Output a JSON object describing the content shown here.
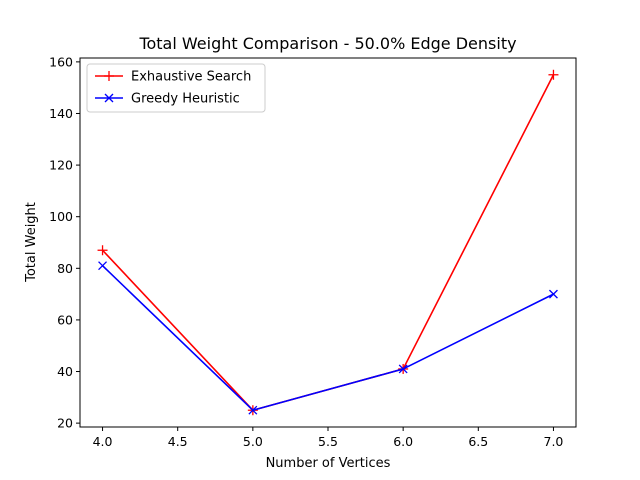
{
  "chart_data": {
    "type": "line",
    "title": "Total Weight Comparison - 50.0% Edge Density",
    "xlabel": "Number of Vertices",
    "ylabel": "Total Weight",
    "x": [
      4.0,
      5.0,
      6.0,
      7.0
    ],
    "xlim": [
      3.85,
      7.15
    ],
    "ylim": [
      18.5,
      161.5
    ],
    "xticks": [
      4.0,
      4.5,
      5.0,
      5.5,
      6.0,
      6.5,
      7.0
    ],
    "xtick_labels": [
      "4.0",
      "4.5",
      "5.0",
      "5.5",
      "6.0",
      "6.5",
      "7.0"
    ],
    "yticks": [
      20,
      40,
      60,
      80,
      100,
      120,
      140,
      160
    ],
    "ytick_labels": [
      "20",
      "40",
      "60",
      "80",
      "100",
      "120",
      "140",
      "160"
    ],
    "grid": false,
    "legend_position": "top-left",
    "series": [
      {
        "name": "Exhaustive Search",
        "values": [
          87,
          25,
          41,
          155
        ],
        "color": "#ff0000",
        "marker": "plus"
      },
      {
        "name": "Greedy Heuristic",
        "values": [
          81,
          25,
          41,
          70
        ],
        "color": "#0000ff",
        "marker": "x"
      }
    ]
  }
}
